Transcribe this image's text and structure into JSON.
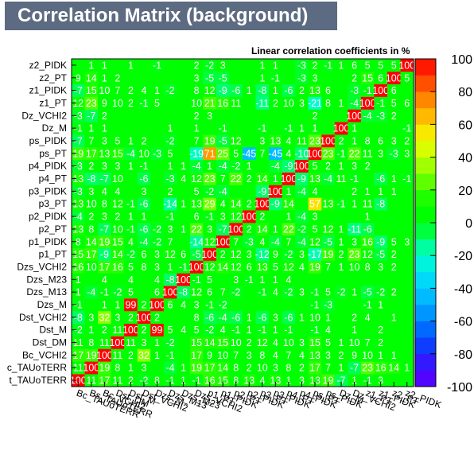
{
  "title": "Correlation Matrix (background)",
  "chart_data": {
    "type": "heatmap",
    "title": "Correlation Matrix (background)",
    "subtitle": "Linear correlation coefficients in %",
    "variables": [
      "Bc_TAUoTERR",
      "Bs_TAUoTERR",
      "Bc_VCHI2",
      "Dst_DM",
      "Dst_M",
      "Dst_VCHI2",
      "Dzs_M",
      "Dzs_M13",
      "Dzs_M23",
      "Dzs_VCHI2",
      "p1_PT",
      "p1_PIDK",
      "p2_PT",
      "p2_PIDK",
      "p3_PT",
      "p3_PIDK",
      "p4_PT",
      "p4_PIDK",
      "ps_PT",
      "ps_PIDK",
      "Dz_M",
      "Dz_VCHI2",
      "z1_PT",
      "z1_PIDK",
      "z2_PT",
      "z2_PIDK"
    ],
    "x_labels_rendered": [
      "Bc_TAUoTERR",
      "Bs_TAUoTERR",
      "Bc_VCHI2",
      "Dst_DM",
      "Dst_M",
      "Dst_VCHI2",
      "Dzs_M",
      "Dzs_M13",
      "Dzs_M23",
      "Dzs_VCHI2",
      "p1_PT",
      "p1_PIDK",
      "p2_PT",
      "p2_PIDK",
      "p3_PT",
      "p3_PIDK",
      "p4_PT",
      "p4_PIDK",
      "ps_PT",
      "ps_PIDK",
      "Dz_M",
      "Dz_VCHI2",
      "z1_PT",
      "z1_PIDK",
      "z2_PT",
      "z2_PIDK"
    ],
    "y_labels_rendered": [
      "t_TAUoTERR",
      "c_TAUoTERR",
      "Bc_VCHI2",
      "Dst_DM",
      "Dst_M",
      "Dst_VCHI2",
      "Dzs_M",
      "Dzs_M13",
      "Dzs_M23",
      "Dzs_VCHI2",
      "p1_PT",
      "p1_PIDK",
      "p2_PT",
      "p2_PIDK",
      "p3_PT",
      "p3_PIDK",
      "p4_PT",
      "p4_PIDK",
      "ps_PT",
      "ps_PIDK",
      "Dz_M",
      "Dz_VCHI2",
      "z1_PT",
      "z1_PIDK",
      "z2_PT",
      "z2_PIDK"
    ],
    "zlim": [
      -100,
      100
    ],
    "z_ticks": [
      100,
      80,
      60,
      40,
      20,
      0,
      -20,
      -40,
      -60,
      -80,
      -100
    ],
    "matrix": [
      [
        100,
        11,
        17,
        11,
        2,
        -2,
        8,
        -1,
        1,
        -1,
        16,
        15,
        8,
        13,
        4,
        13,
        1,
        3,
        13,
        19,
        -7,
        1,
        -1,
        3,
        0,
        0
      ],
      [
        11,
        100,
        19,
        8,
        1,
        3,
        0,
        -4,
        1,
        19,
        17,
        14,
        8,
        2,
        10,
        3,
        8,
        2,
        17,
        7,
        1,
        -7,
        23,
        16,
        14,
        1
      ],
      [
        17,
        19,
        100,
        11,
        2,
        32,
        1,
        -1,
        0,
        17,
        9,
        10,
        7,
        3,
        8,
        4,
        7,
        4,
        13,
        3,
        2,
        9,
        10,
        1,
        1,
        0
      ],
      [
        11,
        8,
        11,
        100,
        11,
        3,
        1,
        -2,
        0,
        15,
        14,
        15,
        10,
        2,
        12,
        4,
        10,
        3,
        15,
        5,
        1,
        10,
        7,
        2,
        0,
        0
      ],
      [
        -2,
        1,
        2,
        11,
        100,
        2,
        99,
        5,
        4,
        5,
        -2,
        4,
        -1,
        1,
        -1,
        1,
        -1,
        0,
        -1,
        4,
        0,
        1,
        0,
        2,
        0,
        0
      ],
      [
        -8,
        3,
        32,
        3,
        2,
        100,
        2,
        0,
        0,
        8,
        -6,
        -4,
        -6,
        1,
        -6,
        3,
        -6,
        1,
        10,
        1,
        0,
        2,
        4,
        0,
        1,
        0
      ],
      [
        -1,
        0,
        1,
        1,
        99,
        2,
        100,
        6,
        4,
        3,
        -1,
        -2,
        0,
        0,
        0,
        0,
        0,
        0,
        -1,
        -3,
        0,
        0,
        -1,
        1,
        0,
        0
      ],
      [
        1,
        -4,
        -1,
        -2,
        5,
        0,
        6,
        100,
        -8,
        12,
        6,
        7,
        -2,
        0,
        -1,
        4,
        -2,
        3,
        -1,
        5,
        -2,
        1,
        -5,
        -2,
        2,
        0
      ],
      [
        1,
        0,
        4,
        0,
        4,
        0,
        4,
        -8,
        100,
        -1,
        5,
        0,
        3,
        -1,
        1,
        1,
        4,
        0,
        0,
        0,
        0,
        0,
        0,
        0,
        0,
        0
      ],
      [
        16,
        10,
        17,
        16,
        5,
        8,
        3,
        1,
        -1,
        100,
        12,
        14,
        12,
        6,
        13,
        5,
        12,
        4,
        19,
        7,
        1,
        10,
        8,
        3,
        2,
        0
      ],
      [
        15,
        17,
        -9,
        14,
        -2,
        6,
        3,
        12,
        6,
        -5,
        100,
        2,
        12,
        3,
        -12,
        9,
        -2,
        3,
        -17,
        19,
        2,
        23,
        12,
        -5,
        2,
        0
      ],
      [
        8,
        14,
        19,
        15,
        4,
        -4,
        -2,
        7,
        0,
        -14,
        12,
        100,
        7,
        -3,
        4,
        -4,
        7,
        -4,
        12,
        -5,
        1,
        3,
        16,
        -9,
        5,
        3
      ],
      [
        13,
        8,
        -7,
        10,
        -1,
        -6,
        -2,
        3,
        1,
        22,
        3,
        -7,
        100,
        2,
        14,
        1,
        22,
        -2,
        5,
        12,
        1,
        -11,
        -6,
        0,
        0,
        0
      ],
      [
        -4,
        2,
        3,
        2,
        1,
        1,
        0,
        -1,
        0,
        6,
        -1,
        3,
        12,
        100,
        2,
        0,
        1,
        -4,
        3,
        0,
        0,
        0,
        1,
        0,
        0,
        0
      ],
      [
        13,
        10,
        8,
        12,
        -1,
        -6,
        0,
        -14,
        1,
        13,
        29,
        4,
        14,
        2,
        100,
        -9,
        14,
        0,
        57,
        13,
        -1,
        1,
        11,
        -8,
        0,
        0
      ],
      [
        -3,
        3,
        4,
        4,
        0,
        3,
        0,
        2,
        0,
        5,
        -2,
        -4,
        0,
        0,
        -9,
        100,
        1,
        -4,
        4,
        0,
        0,
        2,
        1,
        1,
        1,
        0
      ],
      [
        13,
        -8,
        -7,
        10,
        0,
        -6,
        0,
        -3,
        4,
        12,
        23,
        7,
        22,
        2,
        14,
        1,
        100,
        -9,
        13,
        -4,
        11,
        -1,
        0,
        -6,
        1,
        -1
      ],
      [
        -3,
        2,
        3,
        3,
        1,
        -1,
        0,
        1,
        1,
        -4,
        1,
        -4,
        -2,
        1,
        0,
        -4,
        -9,
        100,
        5,
        2,
        1,
        3,
        2,
        0,
        0,
        0
      ],
      [
        19,
        17,
        13,
        15,
        -4,
        10,
        -3,
        5,
        0,
        -19,
        71,
        25,
        5,
        -45,
        7,
        -45,
        4,
        -10,
        100,
        23,
        -1,
        22,
        11,
        3,
        -3,
        3
      ],
      [
        -7,
        7,
        3,
        5,
        1,
        2,
        0,
        -2,
        0,
        7,
        19,
        -5,
        12,
        0,
        3,
        13,
        4,
        11,
        23,
        100,
        2,
        1,
        8,
        6,
        3,
        2
      ],
      [
        -1,
        1,
        1,
        0,
        0,
        0,
        0,
        1,
        0,
        1,
        0,
        -1,
        0,
        0,
        -1,
        0,
        -1,
        1,
        1,
        0,
        100,
        1,
        0,
        0,
        0,
        -1
      ],
      [
        -3,
        -7,
        2,
        0,
        0,
        0,
        0,
        0,
        0,
        2,
        3,
        0,
        0,
        0,
        0,
        0,
        0,
        0,
        2,
        0,
        0,
        100,
        -4,
        -3,
        2,
        0
      ],
      [
        12,
        23,
        9,
        10,
        2,
        -1,
        5,
        0,
        0,
        10,
        21,
        16,
        11,
        0,
        -11,
        2,
        10,
        3,
        -21,
        8,
        1,
        -4,
        100,
        -1,
        5,
        6
      ],
      [
        -7,
        15,
        10,
        7,
        2,
        4,
        1,
        -2,
        0,
        8,
        12,
        -9,
        -6,
        1,
        -8,
        1,
        -6,
        2,
        13,
        6,
        0,
        -3,
        -1,
        100,
        6,
        0
      ],
      [
        9,
        14,
        1,
        2,
        0,
        0,
        0,
        0,
        0,
        3,
        -5,
        -5,
        0,
        0,
        1,
        -1,
        0,
        -3,
        3,
        0,
        0,
        2,
        15,
        6,
        100,
        5
      ],
      [
        0,
        1,
        1,
        0,
        1,
        0,
        -1,
        0,
        0,
        2,
        -2,
        3,
        0,
        0,
        1,
        1,
        0,
        -3,
        2,
        -1,
        1,
        6,
        5,
        5,
        5,
        100
      ]
    ]
  }
}
